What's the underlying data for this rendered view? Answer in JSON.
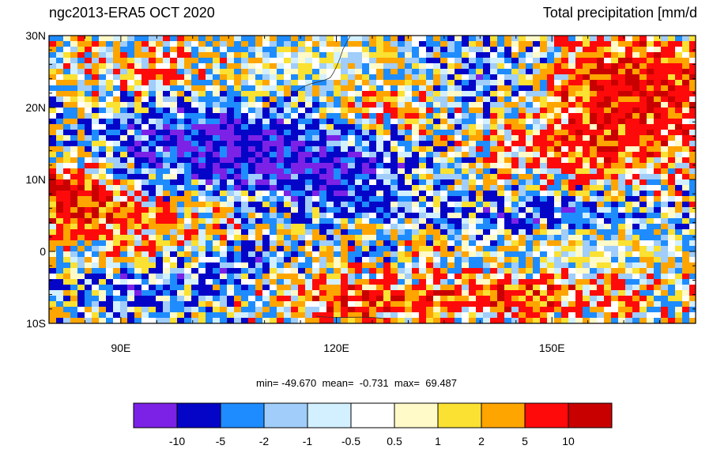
{
  "header": {
    "left_title": "ngc2013-ERA5 OCT 2020",
    "right_title": "Total precipitation [mm/d"
  },
  "stats": {
    "text": "min= -49.670  mean=  -0.731  max=  69.487",
    "min": -49.67,
    "mean": -0.731,
    "max": 69.487
  },
  "map": {
    "lon_range": [
      80,
      170
    ],
    "lat_range": [
      -10,
      30
    ],
    "lat_ticks": [
      {
        "value": 30,
        "label": "30N"
      },
      {
        "value": 20,
        "label": "20N"
      },
      {
        "value": 10,
        "label": "10N"
      },
      {
        "value": 0,
        "label": "0"
      },
      {
        "value": -10,
        "label": "10S"
      }
    ],
    "lon_ticks": [
      {
        "value": 90,
        "label": "90E"
      },
      {
        "value": 120,
        "label": "120E"
      },
      {
        "value": 150,
        "label": "150E"
      }
    ]
  },
  "colorbar": {
    "colors": [
      "#7b22e6",
      "#0505c8",
      "#1e8cff",
      "#a0cdfa",
      "#d2f0ff",
      "#ffffff",
      "#fffac8",
      "#fae132",
      "#ffa500",
      "#ff0a0a",
      "#c80000"
    ],
    "labels": [
      "-10",
      "-5",
      "-2",
      "-1",
      "-0.5",
      "0.5",
      "1",
      "2",
      "5",
      "10"
    ]
  }
}
